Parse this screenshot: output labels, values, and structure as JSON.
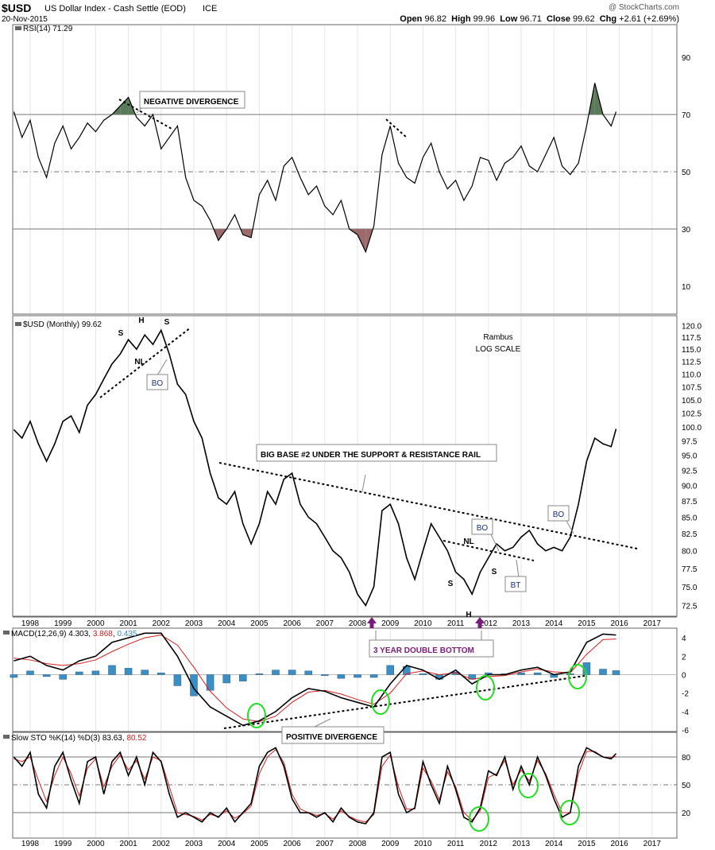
{
  "header": {
    "symbol": "$USD",
    "name": "US Dollar Index - Cash Settle (EOD)",
    "exchange": "ICE",
    "date": "20-Nov-2015",
    "watermark": "@ StockCharts.com",
    "quote": {
      "open_label": "Open",
      "open": "96.82",
      "high_label": "High",
      "high": "99.96",
      "low_label": "Low",
      "low": "96.71",
      "close_label": "Close",
      "close": "99.62",
      "chg_label": "Chg",
      "chg": "+2.61 (+2.69%)"
    }
  },
  "colors": {
    "price": "#000000",
    "signal": "#d42020",
    "histogram": "#3c8fc4",
    "overbought_fill": "#5a7a5a",
    "oversold_fill": "#9b6a6a",
    "circle": "#22dd22",
    "arrow": "#7a1a7a",
    "grid": "#999999"
  },
  "chart_data": [
    {
      "type": "line",
      "panel": "rsi",
      "legend": "RSI(14) 71.29",
      "ylim": [
        0,
        100
      ],
      "yticks": [
        10,
        30,
        50,
        70,
        90
      ],
      "reference_lines": [
        30,
        50,
        70
      ],
      "x": [
        1997.5,
        1997.75,
        1998,
        1998.25,
        1998.5,
        1998.75,
        1999,
        1999.25,
        1999.5,
        1999.75,
        2000,
        2000.25,
        2000.5,
        2000.75,
        2001,
        2001.25,
        2001.5,
        2001.75,
        2002,
        2002.25,
        2002.5,
        2002.75,
        2003,
        2003.25,
        2003.5,
        2003.75,
        2004,
        2004.25,
        2004.5,
        2004.75,
        2005,
        2005.25,
        2005.5,
        2005.75,
        2006,
        2006.25,
        2006.5,
        2006.75,
        2007,
        2007.25,
        2007.5,
        2007.75,
        2008,
        2008.25,
        2008.5,
        2008.75,
        2009,
        2009.25,
        2009.5,
        2009.75,
        2010,
        2010.25,
        2010.5,
        2010.75,
        2011,
        2011.25,
        2011.5,
        2011.75,
        2012,
        2012.25,
        2012.5,
        2012.75,
        2013,
        2013.25,
        2013.5,
        2013.75,
        2014,
        2014.25,
        2014.5,
        2014.75,
        2015,
        2015.25,
        2015.5,
        2015.75,
        2015.9
      ],
      "values": [
        71,
        62,
        68,
        55,
        48,
        60,
        66,
        58,
        62,
        67,
        64,
        68,
        70,
        73,
        76,
        69,
        66,
        70,
        58,
        62,
        66,
        48,
        40,
        38,
        33,
        26,
        30,
        35,
        28,
        27,
        42,
        47,
        40,
        52,
        55,
        48,
        42,
        45,
        38,
        35,
        40,
        30,
        28,
        22,
        31,
        56,
        66,
        53,
        48,
        46,
        55,
        60,
        50,
        44,
        47,
        40,
        45,
        55,
        54,
        47,
        53,
        55,
        59,
        52,
        50,
        56,
        62,
        52,
        49,
        53,
        66,
        81,
        70,
        66,
        71
      ]
    },
    {
      "type": "line",
      "panel": "price",
      "legend": "$USD (Monthly) 99.62",
      "scale": "log",
      "ylim": [
        71,
        121
      ],
      "yticks": [
        72.5,
        75.0,
        77.5,
        80.0,
        82.5,
        85.0,
        87.5,
        90.0,
        92.5,
        95.0,
        97.5,
        100.0,
        102.5,
        105.0,
        107.5,
        110.0,
        112.5,
        115.0,
        117.5,
        120.0
      ],
      "x": [
        1997.5,
        1997.75,
        1998,
        1998.25,
        1998.5,
        1998.75,
        1999,
        1999.25,
        1999.5,
        1999.75,
        2000,
        2000.25,
        2000.5,
        2000.75,
        2001,
        2001.25,
        2001.5,
        2001.75,
        2002,
        2002.25,
        2002.5,
        2002.75,
        2003,
        2003.25,
        2003.5,
        2003.75,
        2004,
        2004.25,
        2004.5,
        2004.75,
        2005,
        2005.25,
        2005.5,
        2005.75,
        2006,
        2006.25,
        2006.5,
        2006.75,
        2007,
        2007.25,
        2007.5,
        2007.75,
        2008,
        2008.25,
        2008.5,
        2008.75,
        2009,
        2009.25,
        2009.5,
        2009.75,
        2010,
        2010.25,
        2010.5,
        2010.75,
        2011,
        2011.25,
        2011.5,
        2011.75,
        2012,
        2012.25,
        2012.5,
        2012.75,
        2013,
        2013.25,
        2013.5,
        2013.75,
        2014,
        2014.25,
        2014.5,
        2014.75,
        2015,
        2015.25,
        2015.5,
        2015.75,
        2015.9
      ],
      "values": [
        99.5,
        98,
        101,
        97,
        94,
        97,
        101,
        102,
        99,
        104,
        106,
        109,
        112,
        114,
        117,
        115,
        118,
        116,
        119,
        114,
        108,
        106,
        101,
        98,
        92,
        88,
        87,
        89,
        84,
        81,
        84,
        89,
        87,
        91,
        92,
        87,
        85,
        84,
        82,
        80,
        79,
        77,
        74,
        72.5,
        75,
        86,
        87,
        84,
        79,
        76,
        80,
        84,
        82,
        80,
        77,
        76,
        74,
        77,
        79,
        81,
        80,
        80.5,
        82,
        83,
        81,
        80,
        80.5,
        80,
        82,
        87,
        94,
        98,
        97,
        96.5,
        99.62
      ]
    },
    {
      "type": "line",
      "panel": "macd",
      "legend": "MACD(12,26,9)",
      "legend_values": [
        "4.303",
        "3.868",
        "0.435"
      ],
      "ylim": [
        -6.5,
        5
      ],
      "yticks": [
        -6,
        -4,
        -2,
        0,
        2,
        4
      ],
      "x": [
        1997.5,
        1998,
        1998.5,
        1999,
        1999.5,
        2000,
        2000.5,
        2001,
        2001.5,
        2002,
        2002.5,
        2003,
        2003.5,
        2004,
        2004.5,
        2005,
        2005.5,
        2006,
        2006.5,
        2007,
        2007.5,
        2008,
        2008.5,
        2009,
        2009.5,
        2010,
        2010.5,
        2011,
        2011.5,
        2012,
        2012.5,
        2013,
        2013.5,
        2014,
        2014.5,
        2015,
        2015.5,
        2015.9
      ],
      "series": [
        {
          "values": [
            1.5,
            2,
            1,
            0.5,
            1.5,
            2,
            3.5,
            4,
            4.5,
            4.5,
            2,
            -1.5,
            -3.5,
            -4.5,
            -5.5,
            -5,
            -4,
            -2.5,
            -1.5,
            -1.8,
            -2.5,
            -3,
            -3.5,
            -1,
            1,
            0.5,
            -0.5,
            0.5,
            -1,
            0,
            0,
            0.5,
            0.8,
            0,
            0.3,
            3.5,
            4.4,
            4.3
          ]
        },
        {
          "values": [
            1.8,
            1.6,
            1.2,
            1.0,
            1.2,
            1.6,
            2.5,
            3.3,
            4.0,
            4.3,
            3.2,
            0.8,
            -1.8,
            -3.6,
            -4.8,
            -5.1,
            -4.5,
            -3.0,
            -1.9,
            -1.7,
            -2.1,
            -2.7,
            -3.2,
            -2.0,
            0.1,
            0.4,
            0.0,
            0.2,
            -0.5,
            -0.2,
            -0.1,
            0.3,
            0.6,
            0.3,
            0.2,
            2.2,
            3.8,
            3.87
          ]
        },
        {
          "values": [
            -0.3,
            0.4,
            -0.2,
            -0.5,
            0.3,
            0.4,
            1,
            0.7,
            0.5,
            0.2,
            -1.2,
            -2.3,
            -1.7,
            -0.9,
            -0.7,
            0.1,
            0.5,
            0.5,
            0.4,
            -0.1,
            -0.4,
            -0.3,
            -0.3,
            1,
            0.9,
            0.1,
            -0.5,
            0.3,
            -0.5,
            0.2,
            0.1,
            0.2,
            0.2,
            -0.3,
            0.1,
            1.3,
            0.6,
            0.435
          ]
        }
      ]
    },
    {
      "type": "line",
      "panel": "stochastic",
      "legend": "Slow STO %K(14) %D(3)",
      "legend_values": [
        "83.63",
        "80.52"
      ],
      "ylim": [
        0,
        100
      ],
      "yticks": [
        20,
        50,
        80
      ],
      "reference_lines": [
        20,
        50,
        80
      ],
      "x": [
        1997.5,
        1997.75,
        1998,
        1998.25,
        1998.5,
        1998.75,
        1999,
        1999.25,
        1999.5,
        1999.75,
        2000,
        2000.25,
        2000.5,
        2000.75,
        2001,
        2001.25,
        2001.5,
        2001.75,
        2002,
        2002.25,
        2002.5,
        2002.75,
        2003,
        2003.25,
        2003.5,
        2003.75,
        2004,
        2004.25,
        2004.5,
        2004.75,
        2005,
        2005.25,
        2005.5,
        2005.75,
        2006,
        2006.25,
        2006.5,
        2006.75,
        2007,
        2007.25,
        2007.5,
        2007.75,
        2008,
        2008.25,
        2008.5,
        2008.75,
        2009,
        2009.25,
        2009.5,
        2009.75,
        2010,
        2010.25,
        2010.5,
        2010.75,
        2011,
        2011.25,
        2011.5,
        2011.75,
        2012,
        2012.25,
        2012.5,
        2012.75,
        2013,
        2013.25,
        2013.5,
        2013.75,
        2014,
        2014.25,
        2014.5,
        2014.75,
        2015,
        2015.25,
        2015.5,
        2015.75,
        2015.9
      ],
      "series": [
        {
          "values": [
            80,
            70,
            85,
            40,
            25,
            70,
            85,
            55,
            30,
            75,
            80,
            40,
            75,
            85,
            60,
            80,
            50,
            85,
            75,
            40,
            15,
            20,
            15,
            10,
            20,
            15,
            25,
            10,
            20,
            30,
            70,
            85,
            90,
            70,
            35,
            20,
            20,
            15,
            20,
            10,
            25,
            15,
            10,
            8,
            20,
            80,
            85,
            40,
            20,
            25,
            75,
            50,
            30,
            70,
            45,
            15,
            10,
            25,
            65,
            60,
            80,
            45,
            70,
            50,
            80,
            60,
            35,
            15,
            20,
            70,
            90,
            85,
            80,
            78,
            83.63
          ]
        },
        {
          "values": [
            78,
            75,
            80,
            55,
            32,
            60,
            80,
            62,
            38,
            68,
            78,
            48,
            70,
            82,
            66,
            76,
            56,
            80,
            76,
            48,
            20,
            18,
            16,
            12,
            18,
            16,
            22,
            14,
            19,
            27,
            62,
            80,
            88,
            74,
            40,
            24,
            20,
            17,
            19,
            13,
            22,
            16,
            12,
            10,
            18,
            70,
            82,
            48,
            24,
            24,
            68,
            54,
            34,
            64,
            48,
            20,
            12,
            22,
            58,
            62,
            76,
            50,
            66,
            54,
            76,
            62,
            40,
            20,
            20,
            62,
            86,
            86,
            80,
            79,
            80.52
          ]
        }
      ]
    }
  ],
  "xaxis": {
    "years": [
      "1998",
      "1999",
      "2000",
      "2001",
      "2002",
      "2003",
      "2004",
      "2005",
      "2006",
      "2007",
      "2008",
      "2009",
      "2010",
      "2011",
      "2012",
      "2013",
      "2014",
      "2015",
      "2016",
      "2017"
    ]
  },
  "annotations": {
    "negative_divergence": "NEGATIVE DIVERGENCE",
    "rambus": "Rambus",
    "log_scale": "LOG SCALE",
    "big_base": "BIG BASE #2 UNDER THE SUPPORT & RESISTANCE RAIL",
    "double_bottom": "3 YEAR DOUBLE BOTTOM",
    "positive_divergence": "POSITIVE DIVERGENCE",
    "bo": "BO",
    "bt": "BT",
    "nl": "NL",
    "s": "S",
    "h": "H"
  }
}
